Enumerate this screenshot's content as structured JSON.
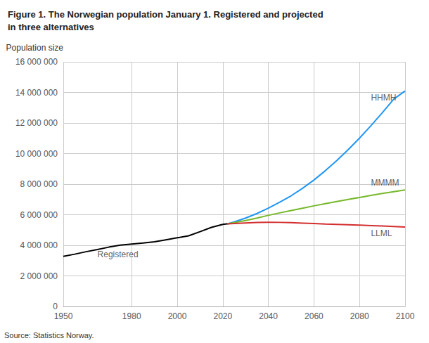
{
  "chart_data": {
    "type": "line",
    "title": "Figure 1. The Norwegian population January 1. Registered and projected\nin three alternatives",
    "ylabel": "Population size",
    "source": "Source: Statistics Norway.",
    "xlim": [
      1950,
      2100
    ],
    "ylim": [
      0,
      16000000
    ],
    "xticks": [
      1950,
      1980,
      2000,
      2020,
      2040,
      2060,
      2080,
      2100
    ],
    "yticks": [
      0,
      {
        "value": 2000000,
        "label": "2 000 000"
      },
      {
        "value": 4000000,
        "label": "4 000 000"
      },
      {
        "value": 6000000,
        "label": "6 000 000"
      },
      {
        "value": 8000000,
        "label": "8 000 000"
      },
      {
        "value": 10000000,
        "label": "10 000 000"
      },
      {
        "value": 12000000,
        "label": "12 000 000"
      },
      {
        "value": 14000000,
        "label": "14 000 000"
      },
      {
        "value": 16000000,
        "label": "16 000 000"
      }
    ],
    "grid": true,
    "legend": false,
    "series": [
      {
        "name": "Registered",
        "color": "#000000",
        "x": [
          1950,
          1955,
          1960,
          1965,
          1970,
          1975,
          1980,
          1985,
          1990,
          1995,
          2000,
          2005,
          2010,
          2015,
          2020,
          2023
        ],
        "values": [
          3280000,
          3420000,
          3580000,
          3720000,
          3880000,
          4010000,
          4080000,
          4150000,
          4230000,
          4360000,
          4490000,
          4620000,
          4890000,
          5170000,
          5370000,
          5420000
        ],
        "annotation": {
          "text": "Registered",
          "x": 1965,
          "y": 3680000
        }
      },
      {
        "name": "HHMH",
        "color": "#2196f3",
        "x": [
          2022,
          2025,
          2030,
          2035,
          2040,
          2045,
          2050,
          2055,
          2060,
          2065,
          2070,
          2075,
          2080,
          2085,
          2090,
          2095,
          2100
        ],
        "values": [
          5400000,
          5530000,
          5780000,
          6080000,
          6430000,
          6820000,
          7240000,
          7730000,
          8270000,
          8880000,
          9540000,
          10250000,
          11010000,
          11820000,
          12670000,
          13560000,
          14100000
        ],
        "annotation": {
          "text": "HHMH",
          "x": 2085,
          "y": 13400000
        }
      },
      {
        "name": "MMMM",
        "color": "#76b82a",
        "x": [
          2022,
          2025,
          2030,
          2035,
          2040,
          2045,
          2050,
          2055,
          2060,
          2065,
          2070,
          2075,
          2080,
          2085,
          2090,
          2095,
          2100
        ],
        "values": [
          5400000,
          5480000,
          5620000,
          5780000,
          5960000,
          6120000,
          6280000,
          6430000,
          6580000,
          6720000,
          6860000,
          7000000,
          7130000,
          7260000,
          7390000,
          7510000,
          7620000
        ],
        "annotation": {
          "text": "MMMM",
          "x": 2085,
          "y": 7820000
        }
      },
      {
        "name": "LLML",
        "color": "#d32f2f",
        "x": [
          2022,
          2025,
          2030,
          2035,
          2040,
          2045,
          2050,
          2055,
          2060,
          2065,
          2070,
          2075,
          2080,
          2085,
          2090,
          2095,
          2100
        ],
        "values": [
          5400000,
          5420000,
          5460000,
          5490000,
          5510000,
          5500000,
          5480000,
          5450000,
          5420000,
          5390000,
          5370000,
          5350000,
          5320000,
          5290000,
          5260000,
          5230000,
          5200000
        ],
        "annotation": {
          "text": "LLML",
          "x": 2085,
          "y": 5050000
        }
      }
    ]
  }
}
